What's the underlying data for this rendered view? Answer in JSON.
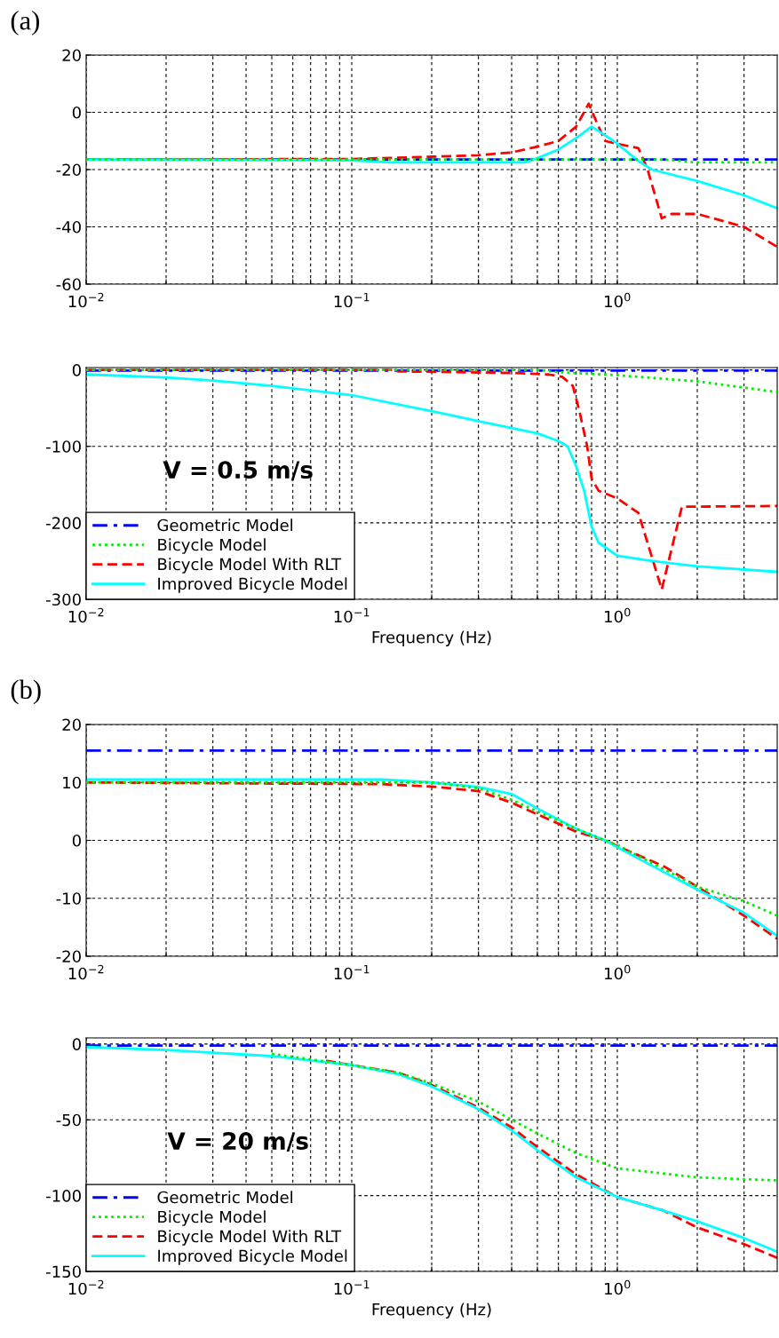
{
  "chart_data": [
    {
      "type": "line",
      "log": "x",
      "grid": true,
      "xlim": [
        0.01,
        4
      ],
      "ylim": [
        -60,
        20
      ],
      "yticks": [
        -60,
        -40,
        -20,
        0,
        20
      ],
      "xticks": [
        {
          "value": 0.01,
          "label": "10$^{−2}$"
        },
        {
          "value": 0.02,
          "label": null
        },
        {
          "value": 0.03,
          "label": null
        },
        {
          "value": 0.04,
          "label": null
        },
        {
          "value": 0.05,
          "label": null
        },
        {
          "value": 0.06,
          "label": null
        },
        {
          "value": 0.07,
          "label": null
        },
        {
          "value": 0.08,
          "label": null
        },
        {
          "value": 0.09,
          "label": null
        },
        {
          "value": 0.1,
          "label": "10$^{−1}$"
        },
        {
          "value": 0.2,
          "label": null
        },
        {
          "value": 0.3,
          "label": null
        },
        {
          "value": 0.4,
          "label": null
        },
        {
          "value": 0.5,
          "label": null
        },
        {
          "value": 0.6,
          "label": null
        },
        {
          "value": 0.7,
          "label": null
        },
        {
          "value": 0.8,
          "label": null
        },
        {
          "value": 0.9,
          "label": null
        },
        {
          "value": 1,
          "label": "10$^{0}$"
        },
        {
          "value": 2,
          "label": null
        },
        {
          "value": 3,
          "label": null
        }
      ],
      "annotations": [
        "(a)"
      ],
      "series": [
        {
          "color": "#0000ff",
          "line_style": "dashdot",
          "x": [
            0.01,
            4
          ],
          "values": [
            -16.5,
            -16.5
          ]
        },
        {
          "color": "#00ee00",
          "line_style": "dotted",
          "x": [
            0.01,
            1.5,
            2,
            4
          ],
          "values": [
            -16.5,
            -16.5,
            -17.5,
            -17.5
          ]
        },
        {
          "color": "#ff0000",
          "line_style": "dashed",
          "x": [
            0.01,
            0.1,
            0.2,
            0.3,
            0.4,
            0.5,
            0.6,
            0.7,
            0.78,
            0.85,
            0.9,
            1.0,
            1.2,
            1.3,
            1.47,
            1.6,
            2,
            3,
            4
          ],
          "values": [
            -16.5,
            -16.3,
            -15.5,
            -15,
            -14,
            -12,
            -10,
            -5,
            3,
            -5,
            -10,
            -11,
            -12.5,
            -20,
            -37,
            -35.5,
            -35.5,
            -40,
            -47
          ]
        },
        {
          "color": "#00ffff",
          "line_style": "solid",
          "x": [
            0.01,
            0.1,
            0.14,
            0.45,
            0.5,
            0.6,
            0.7,
            0.8,
            0.9,
            1.0,
            1.2,
            1.35,
            2,
            3,
            4
          ],
          "values": [
            -16.5,
            -16.8,
            -17.5,
            -17.5,
            -16,
            -13,
            -9,
            -5,
            -8,
            -11,
            -17,
            -20,
            -24,
            -29,
            -33.5
          ]
        }
      ]
    },
    {
      "type": "line",
      "log": "x",
      "grid": true,
      "xlim": [
        0.01,
        4
      ],
      "ylim": [
        -300,
        3
      ],
      "yticks": [
        -300,
        -200,
        -100,
        0
      ],
      "xlabel": "Frequency (Hz)",
      "legend": "bottom left",
      "xticks": [
        {
          "value": 0.01,
          "label": "10$^{−2}$"
        },
        {
          "value": 0.02,
          "label": null
        },
        {
          "value": 0.03,
          "label": null
        },
        {
          "value": 0.04,
          "label": null
        },
        {
          "value": 0.05,
          "label": null
        },
        {
          "value": 0.06,
          "label": null
        },
        {
          "value": 0.07,
          "label": null
        },
        {
          "value": 0.08,
          "label": null
        },
        {
          "value": 0.09,
          "label": null
        },
        {
          "value": 0.1,
          "label": "10$^{−1}$"
        },
        {
          "value": 0.2,
          "label": null
        },
        {
          "value": 0.3,
          "label": null
        },
        {
          "value": 0.4,
          "label": null
        },
        {
          "value": 0.5,
          "label": null
        },
        {
          "value": 0.6,
          "label": null
        },
        {
          "value": 0.7,
          "label": null
        },
        {
          "value": 0.8,
          "label": null
        },
        {
          "value": 0.9,
          "label": null
        },
        {
          "value": 1,
          "label": "10$^{0}$"
        },
        {
          "value": 2,
          "label": null
        },
        {
          "value": 3,
          "label": null
        }
      ],
      "annotations": [
        "V = 0.5 m/s"
      ],
      "series": [
        {
          "name": "Geometric Model",
          "color": "#0000ff",
          "line_style": "dashdot",
          "x": [
            0.01,
            4
          ],
          "values": [
            -1,
            -1
          ]
        },
        {
          "name": "Bicycle Model",
          "color": "#00ee00",
          "line_style": "dotted",
          "x": [
            0.01,
            0.5,
            0.6,
            1,
            2,
            4
          ],
          "values": [
            0,
            0,
            -3,
            -7,
            -15,
            -29
          ]
        },
        {
          "name": "Bicycle Model With RLT",
          "color": "#ff0000",
          "line_style": "dashed",
          "x": [
            0.01,
            0.14,
            0.15,
            0.4,
            0.55,
            0.62,
            0.68,
            0.72,
            0.77,
            0.8,
            0.85,
            1,
            1.2,
            1.47,
            1.75,
            4
          ],
          "values": [
            0,
            0,
            -2,
            -4,
            -6,
            -9,
            -21,
            -54,
            -100,
            -142,
            -158,
            -168,
            -187,
            -287,
            -179,
            -178
          ]
        },
        {
          "name": "Improved Bicycle Model",
          "color": "#00ffff",
          "line_style": "solid",
          "x": [
            0.01,
            0.02,
            0.03,
            0.05,
            0.1,
            0.2,
            0.3,
            0.5,
            0.6,
            0.65,
            0.7,
            0.75,
            0.8,
            0.85,
            1,
            1.3,
            2,
            4
          ],
          "values": [
            -6,
            -10,
            -14,
            -21,
            -33,
            -54,
            -67,
            -83,
            -93,
            -100,
            -126,
            -158,
            -205,
            -226,
            -243,
            -249,
            -257,
            -264
          ]
        }
      ]
    },
    {
      "type": "line",
      "log": "x",
      "grid": true,
      "xlim": [
        0.01,
        4
      ],
      "ylim": [
        -20,
        20
      ],
      "yticks": [
        -20,
        -10,
        0,
        10,
        20
      ],
      "xticks": [
        {
          "value": 0.01,
          "label": "10$^{−2}$"
        },
        {
          "value": 0.02,
          "label": null
        },
        {
          "value": 0.03,
          "label": null
        },
        {
          "value": 0.04,
          "label": null
        },
        {
          "value": 0.05,
          "label": null
        },
        {
          "value": 0.06,
          "label": null
        },
        {
          "value": 0.07,
          "label": null
        },
        {
          "value": 0.08,
          "label": null
        },
        {
          "value": 0.09,
          "label": null
        },
        {
          "value": 0.1,
          "label": "10$^{−1}$"
        },
        {
          "value": 0.2,
          "label": null
        },
        {
          "value": 0.3,
          "label": null
        },
        {
          "value": 0.4,
          "label": null
        },
        {
          "value": 0.5,
          "label": null
        },
        {
          "value": 0.6,
          "label": null
        },
        {
          "value": 0.7,
          "label": null
        },
        {
          "value": 0.8,
          "label": null
        },
        {
          "value": 0.9,
          "label": null
        },
        {
          "value": 1,
          "label": "10$^{0}$"
        },
        {
          "value": 2,
          "label": null
        },
        {
          "value": 3,
          "label": null
        }
      ],
      "annotations": [
        "(b)"
      ],
      "series": [
        {
          "color": "#0000ff",
          "line_style": "dashdot",
          "x": [
            0.01,
            4
          ],
          "values": [
            15.5,
            15.5
          ]
        },
        {
          "color": "#00ee00",
          "line_style": "dotted",
          "x": [
            0.01,
            0.2,
            0.3,
            0.4,
            0.5,
            0.7,
            0.9,
            1,
            1.5,
            2,
            3,
            4
          ],
          "values": [
            10,
            10,
            9,
            7,
            5,
            2,
            0,
            -0.8,
            -5,
            -8,
            -10.5,
            -13
          ]
        },
        {
          "color": "#ff0000",
          "line_style": "dashed",
          "x": [
            0.01,
            0.13,
            0.2,
            0.3,
            0.4,
            0.5,
            0.7,
            0.9,
            1,
            1.5,
            2,
            3,
            4
          ],
          "values": [
            10,
            9.7,
            9.3,
            8.5,
            6.5,
            4.5,
            1.5,
            0,
            -1,
            -4.5,
            -8,
            -13,
            -17
          ]
        },
        {
          "color": "#00ffff",
          "line_style": "solid",
          "x": [
            0.01,
            0.13,
            0.2,
            0.3,
            0.4,
            0.5,
            0.7,
            0.9,
            1,
            1.5,
            2,
            3,
            4
          ],
          "values": [
            10.5,
            10.5,
            10,
            9.2,
            8,
            5.5,
            2,
            0,
            -1.2,
            -5.5,
            -8.5,
            -12.5,
            -16.5
          ]
        }
      ]
    },
    {
      "type": "line",
      "log": "x",
      "grid": true,
      "xlim": [
        0.01,
        4
      ],
      "ylim": [
        -150,
        4
      ],
      "yticks": [
        -150,
        -100,
        -50,
        0
      ],
      "xlabel": "Frequency (Hz)",
      "legend": "bottom left",
      "xticks": [
        {
          "value": 0.01,
          "label": "10$^{−2}$"
        },
        {
          "value": 0.02,
          "label": null
        },
        {
          "value": 0.03,
          "label": null
        },
        {
          "value": 0.04,
          "label": null
        },
        {
          "value": 0.05,
          "label": null
        },
        {
          "value": 0.06,
          "label": null
        },
        {
          "value": 0.07,
          "label": null
        },
        {
          "value": 0.08,
          "label": null
        },
        {
          "value": 0.09,
          "label": null
        },
        {
          "value": 0.1,
          "label": "10$^{−1}$"
        },
        {
          "value": 0.2,
          "label": null
        },
        {
          "value": 0.3,
          "label": null
        },
        {
          "value": 0.4,
          "label": null
        },
        {
          "value": 0.5,
          "label": null
        },
        {
          "value": 0.6,
          "label": null
        },
        {
          "value": 0.7,
          "label": null
        },
        {
          "value": 0.8,
          "label": null
        },
        {
          "value": 0.9,
          "label": null
        },
        {
          "value": 1,
          "label": "10$^{0}$"
        },
        {
          "value": 2,
          "label": null
        },
        {
          "value": 3,
          "label": null
        }
      ],
      "annotations": [
        "V = 20 m/s"
      ],
      "series": [
        {
          "name": "Geometric Model",
          "color": "#0000ff",
          "line_style": "dashdot",
          "x": [
            0.01,
            4
          ],
          "values": [
            -1,
            -1
          ]
        },
        {
          "name": "Bicycle Model",
          "color": "#00ee00",
          "line_style": "dotted",
          "x": [
            0.05,
            0.1,
            0.15,
            0.2,
            0.3,
            0.4,
            0.5,
            0.7,
            1,
            2,
            4
          ],
          "values": [
            -6.5,
            -14,
            -19,
            -26,
            -38,
            -50,
            -59,
            -72,
            -82,
            -88,
            -90
          ]
        },
        {
          "name": "Bicycle Model With RLT",
          "color": "#ff0000",
          "line_style": "dashed",
          "x": [
            0.08,
            0.1,
            0.15,
            0.2,
            0.3,
            0.4,
            0.5,
            0.7,
            1,
            1.5,
            2,
            3,
            4
          ],
          "values": [
            -11,
            -14,
            -19,
            -27,
            -42,
            -55,
            -68,
            -86,
            -101,
            -110,
            -121,
            -132,
            -141
          ]
        },
        {
          "name": "Improved Bicycle Model",
          "color": "#00ffff",
          "line_style": "solid",
          "x": [
            0.01,
            0.02,
            0.05,
            0.1,
            0.15,
            0.2,
            0.3,
            0.4,
            0.5,
            0.7,
            1,
            1.5,
            2,
            3,
            4
          ],
          "values": [
            -2,
            -4,
            -8,
            -14,
            -20,
            -28,
            -43,
            -57,
            -70,
            -88,
            -101,
            -110,
            -117,
            -128,
            -137
          ]
        }
      ]
    }
  ]
}
